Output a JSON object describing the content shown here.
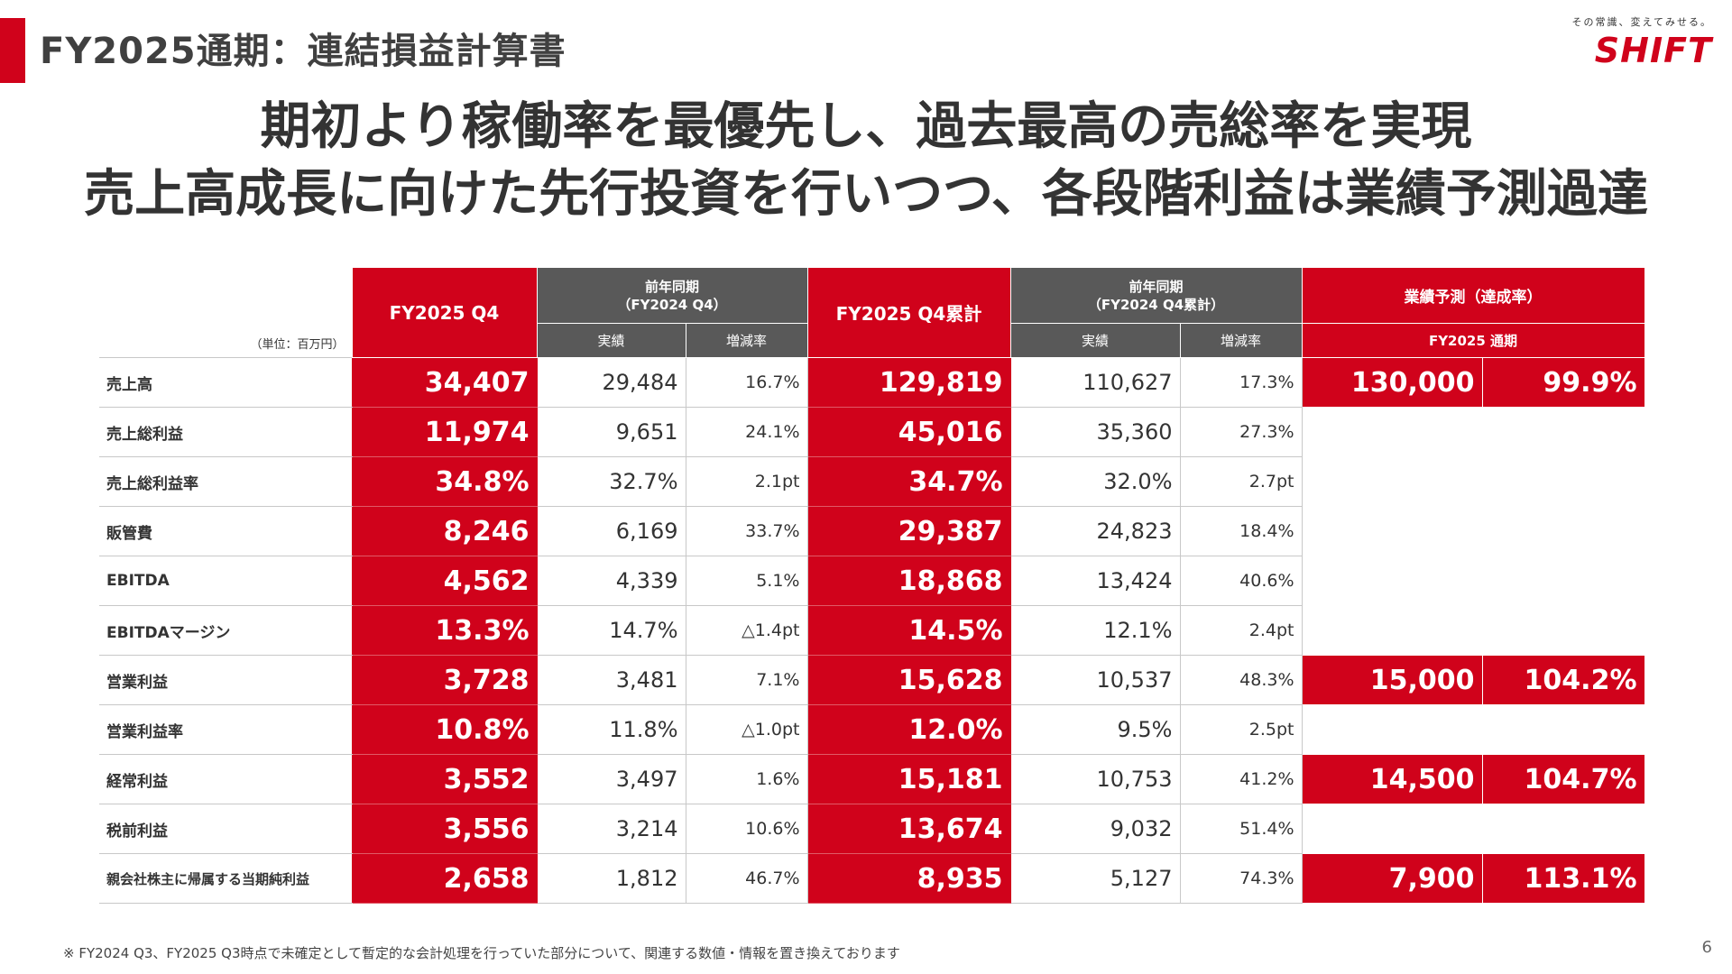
{
  "page": {
    "title": "FY2025通期：連結損益計算書",
    "headline_1": "期初より稼働率を最優先し、過去最高の売総率を実現",
    "headline_2": "売上高成長に向けた先行投資を行いつつ、各段階利益は業績予測過達",
    "footnote": "※ FY2024 Q3、FY2025 Q3時点で未確定として暫定的な会計処理を行っていた部分について、関連する数値・情報を置き換えております",
    "page_number": "6"
  },
  "logo": {
    "tagline": "その常識、変えてみせる。",
    "wordmark": "SHIFT",
    "brand_color": "#d0021b"
  },
  "table": {
    "unit": "（単位：百万円）",
    "headers": {
      "q4": "FY2025 Q4",
      "prev_q4_line1": "前年同期",
      "prev_q4_line2": "（FY2024 Q4）",
      "actual": "実績",
      "change": "増減率",
      "cum": "FY2025 Q4累計",
      "prev_cum_line1": "前年同期",
      "prev_cum_line2": "（FY2024 Q4累計）",
      "forecast": "業績予測（達成率）",
      "forecast_sub": "FY2025 通期"
    },
    "rows": [
      {
        "label": "売上高",
        "q4": "34,407",
        "prev_q4": "29,484",
        "q4_change": "16.7%",
        "cum": "129,819",
        "prev_cum": "110,627",
        "cum_change": "17.3%",
        "forecast": "130,000",
        "achievement": "99.9%"
      },
      {
        "label": "売上総利益",
        "q4": "11,974",
        "prev_q4": "9,651",
        "q4_change": "24.1%",
        "cum": "45,016",
        "prev_cum": "35,360",
        "cum_change": "27.3%",
        "forecast": "",
        "achievement": ""
      },
      {
        "label": "売上総利益率",
        "q4": "34.8%",
        "prev_q4": "32.7%",
        "q4_change": "2.1pt",
        "cum": "34.7%",
        "prev_cum": "32.0%",
        "cum_change": "2.7pt",
        "forecast": "",
        "achievement": ""
      },
      {
        "label": "販管費",
        "q4": "8,246",
        "prev_q4": "6,169",
        "q4_change": "33.7%",
        "cum": "29,387",
        "prev_cum": "24,823",
        "cum_change": "18.4%",
        "forecast": "",
        "achievement": ""
      },
      {
        "label": "EBITDA",
        "q4": "4,562",
        "prev_q4": "4,339",
        "q4_change": "5.1%",
        "cum": "18,868",
        "prev_cum": "13,424",
        "cum_change": "40.6%",
        "forecast": "",
        "achievement": ""
      },
      {
        "label": "EBITDAマージン",
        "q4": "13.3%",
        "prev_q4": "14.7%",
        "q4_change": "△1.4pt",
        "cum": "14.5%",
        "prev_cum": "12.1%",
        "cum_change": "2.4pt",
        "forecast": "",
        "achievement": ""
      },
      {
        "label": "営業利益",
        "q4": "3,728",
        "prev_q4": "3,481",
        "q4_change": "7.1%",
        "cum": "15,628",
        "prev_cum": "10,537",
        "cum_change": "48.3%",
        "forecast": "15,000",
        "achievement": "104.2%"
      },
      {
        "label": "営業利益率",
        "q4": "10.8%",
        "prev_q4": "11.8%",
        "q4_change": "△1.0pt",
        "cum": "12.0%",
        "prev_cum": "9.5%",
        "cum_change": "2.5pt",
        "forecast": "",
        "achievement": ""
      },
      {
        "label": "経常利益",
        "q4": "3,552",
        "prev_q4": "3,497",
        "q4_change": "1.6%",
        "cum": "15,181",
        "prev_cum": "10,753",
        "cum_change": "41.2%",
        "forecast": "14,500",
        "achievement": "104.7%"
      },
      {
        "label": "税前利益",
        "q4": "3,556",
        "prev_q4": "3,214",
        "q4_change": "10.6%",
        "cum": "13,674",
        "prev_cum": "9,032",
        "cum_change": "51.4%",
        "forecast": "",
        "achievement": ""
      },
      {
        "label": "親会社株主に帰属する当期純利益",
        "q4": "2,658",
        "prev_q4": "1,812",
        "q4_change": "46.7%",
        "cum": "8,935",
        "prev_cum": "5,127",
        "cum_change": "74.3%",
        "forecast": "7,900",
        "achievement": "113.1%"
      }
    ]
  }
}
